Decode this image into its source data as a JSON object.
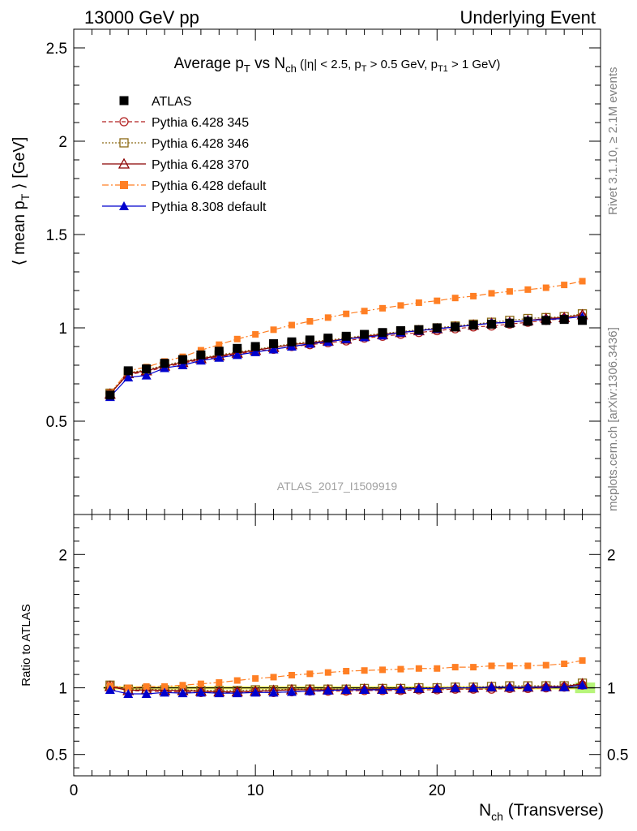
{
  "header": {
    "left": "13000 GeV pp",
    "right": "Underlying Event"
  },
  "side_text": {
    "rivet": "Rivet 3.1.10, ≥ 2.1M events",
    "mcplots": "mcplots.cern.ch [arXiv:1306.3436]"
  },
  "watermark": "ATLAS_2017_I1509919",
  "colors": {
    "atlas": "#000000",
    "p345": "#b22222",
    "p346": "#8b6914",
    "p370": "#8b0000",
    "p6def": "#ff7f24",
    "p8def": "#0000cd",
    "band_yellow": "#ffff66",
    "band_green": "#b7f57a"
  },
  "chart_data": [
    {
      "type": "scatter",
      "title_parts": [
        "Average p",
        "T",
        " vs N",
        "ch",
        " (|η| < 2.5, p",
        "T",
        " > 0.5 GeV, p",
        "T1",
        " > 1 GeV)"
      ],
      "ylabel_parts": [
        "⟨ mean p",
        "T",
        " ⟩ [GeV]"
      ],
      "xlim": [
        0,
        29
      ],
      "ylim": [
        0,
        2.6
      ],
      "yticks": [
        0.5,
        1,
        1.5,
        2,
        2.5
      ],
      "ytick_labels": [
        "0.5",
        "1",
        "1.5",
        "2",
        "2.5"
      ],
      "x": [
        2,
        3,
        4,
        5,
        6,
        7,
        8,
        9,
        10,
        11,
        12,
        13,
        14,
        15,
        16,
        17,
        18,
        19,
        20,
        21,
        22,
        23,
        24,
        25,
        26,
        27,
        28
      ],
      "series": [
        {
          "name": "ATLAS",
          "key": "atlas",
          "values": [
            0.64,
            0.77,
            0.78,
            0.81,
            0.83,
            0.855,
            0.875,
            0.89,
            0.9,
            0.915,
            0.925,
            0.935,
            0.945,
            0.955,
            0.965,
            0.975,
            0.985,
            0.99,
            1.0,
            1.005,
            1.015,
            1.02,
            1.025,
            1.035,
            1.04,
            1.045,
            1.04
          ]
        },
        {
          "name": "Pythia 6.428 345",
          "key": "p345",
          "values": [
            0.65,
            0.75,
            0.765,
            0.79,
            0.81,
            0.83,
            0.845,
            0.86,
            0.875,
            0.885,
            0.9,
            0.91,
            0.92,
            0.93,
            0.945,
            0.955,
            0.965,
            0.975,
            0.985,
            0.995,
            1.005,
            1.01,
            1.02,
            1.03,
            1.04,
            1.05,
            1.06
          ]
        },
        {
          "name": "Pythia 6.428 346",
          "key": "p346",
          "values": [
            0.65,
            0.76,
            0.775,
            0.8,
            0.82,
            0.84,
            0.855,
            0.87,
            0.885,
            0.9,
            0.915,
            0.925,
            0.935,
            0.945,
            0.96,
            0.97,
            0.98,
            0.99,
            1.0,
            1.01,
            1.02,
            1.03,
            1.04,
            1.05,
            1.055,
            1.06,
            1.075
          ]
        },
        {
          "name": "Pythia 6.428 370",
          "key": "p370",
          "values": [
            0.645,
            0.755,
            0.77,
            0.795,
            0.815,
            0.835,
            0.85,
            0.865,
            0.88,
            0.895,
            0.91,
            0.92,
            0.93,
            0.94,
            0.955,
            0.965,
            0.975,
            0.985,
            0.995,
            1.005,
            1.015,
            1.025,
            1.03,
            1.04,
            1.05,
            1.055,
            1.07
          ]
        },
        {
          "name": "Pythia 6.428 default",
          "key": "p6def",
          "values": [
            0.65,
            0.77,
            0.79,
            0.82,
            0.845,
            0.88,
            0.91,
            0.94,
            0.965,
            0.99,
            1.015,
            1.035,
            1.055,
            1.075,
            1.09,
            1.105,
            1.12,
            1.135,
            1.145,
            1.16,
            1.17,
            1.185,
            1.195,
            1.205,
            1.215,
            1.23,
            1.25
          ]
        },
        {
          "name": "Pythia 8.308 default",
          "key": "p8def",
          "values": [
            0.63,
            0.735,
            0.745,
            0.785,
            0.8,
            0.825,
            0.84,
            0.855,
            0.87,
            0.885,
            0.9,
            0.915,
            0.925,
            0.94,
            0.95,
            0.96,
            0.975,
            0.985,
            0.995,
            1.005,
            1.015,
            1.025,
            1.03,
            1.04,
            1.045,
            1.05,
            1.06
          ]
        }
      ]
    },
    {
      "type": "scatter",
      "ylabel": "Ratio to ATLAS",
      "xlabel_parts": [
        "N",
        "ch",
        " (Transverse)"
      ],
      "xlim": [
        0,
        29
      ],
      "ylim": [
        0.34,
        2.3
      ],
      "xticks": [
        0,
        10,
        20
      ],
      "xtick_labels": [
        "0",
        "10",
        "20"
      ],
      "yticks": [
        0.5,
        1,
        2
      ],
      "ytick_labels": [
        "0.5",
        "1",
        "2"
      ],
      "x": [
        2,
        3,
        4,
        5,
        6,
        7,
        8,
        9,
        10,
        11,
        12,
        13,
        14,
        15,
        16,
        17,
        18,
        19,
        20,
        21,
        22,
        23,
        24,
        25,
        26,
        27,
        28
      ],
      "series": [
        {
          "name": "Pythia 6.428 345",
          "key": "p345",
          "values": [
            1.02,
            0.98,
            0.975,
            0.97,
            0.97,
            0.965,
            0.965,
            0.965,
            0.97,
            0.965,
            0.97,
            0.975,
            0.975,
            0.975,
            0.98,
            0.98,
            0.98,
            0.985,
            0.985,
            0.99,
            0.99,
            0.99,
            0.995,
            0.995,
            1.0,
            1.005,
            1.02
          ]
        },
        {
          "name": "Pythia 6.428 346",
          "key": "p346",
          "values": [
            1.02,
            0.99,
            0.99,
            0.985,
            0.985,
            0.98,
            0.98,
            0.98,
            0.985,
            0.985,
            0.99,
            0.99,
            0.99,
            0.99,
            0.995,
            0.995,
            0.995,
            1.0,
            1.0,
            1.005,
            1.005,
            1.01,
            1.015,
            1.015,
            1.015,
            1.015,
            1.035
          ]
        },
        {
          "name": "Pythia 6.428 370",
          "key": "p370",
          "values": [
            1.01,
            0.98,
            0.985,
            0.98,
            0.98,
            0.975,
            0.97,
            0.97,
            0.975,
            0.98,
            0.985,
            0.985,
            0.985,
            0.985,
            0.99,
            0.99,
            0.99,
            0.995,
            0.995,
            1.0,
            1.0,
            1.005,
            1.005,
            1.005,
            1.01,
            1.01,
            1.03
          ]
        },
        {
          "name": "Pythia 6.428 default",
          "key": "p6def",
          "values": [
            1.015,
            1.0,
            1.01,
            1.01,
            1.02,
            1.03,
            1.04,
            1.055,
            1.07,
            1.08,
            1.095,
            1.105,
            1.115,
            1.125,
            1.13,
            1.135,
            1.14,
            1.145,
            1.145,
            1.155,
            1.155,
            1.165,
            1.165,
            1.165,
            1.17,
            1.18,
            1.205
          ]
        },
        {
          "name": "Pythia 8.308 default",
          "key": "p8def",
          "values": [
            0.985,
            0.955,
            0.955,
            0.965,
            0.96,
            0.965,
            0.96,
            0.96,
            0.965,
            0.965,
            0.97,
            0.975,
            0.98,
            0.985,
            0.985,
            0.985,
            0.99,
            0.995,
            0.995,
            1.0,
            1.0,
            1.005,
            1.005,
            1.005,
            1.005,
            1.005,
            1.02
          ]
        }
      ]
    }
  ]
}
